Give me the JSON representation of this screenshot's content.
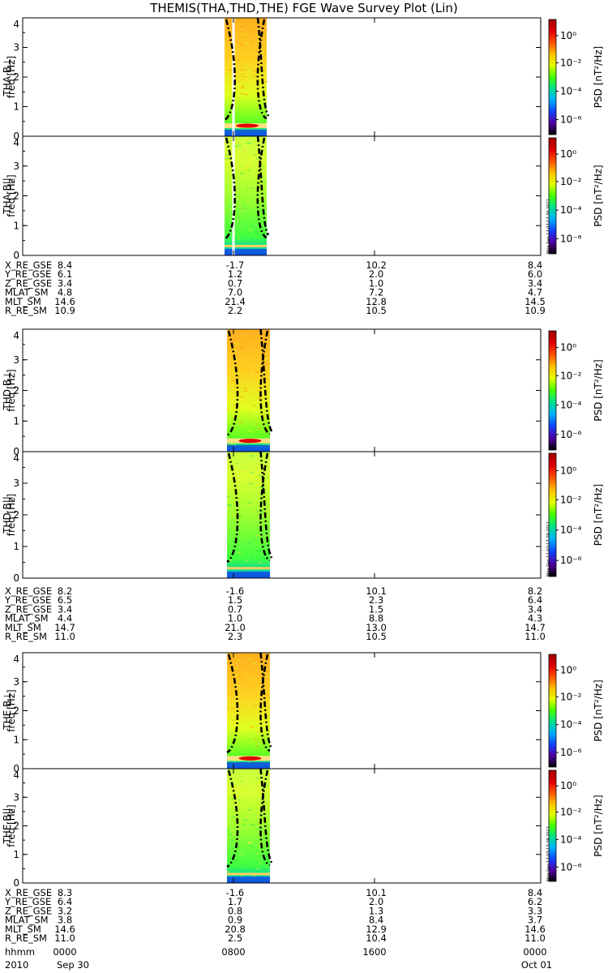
{
  "title": "THEMIS(THA,THD,THE) FGE Wave Survey Plot (Lin)",
  "colors": {
    "background": "#ffffff",
    "axes": "#000000",
    "highlight_line": "#ffffff",
    "colorbar": [
      "#000000",
      "#5000a0",
      "#1040ff",
      "#00b0ff",
      "#00e090",
      "#40ff00",
      "#e0ff00",
      "#ffc000",
      "#ff5000",
      "#e00000",
      "#a00000"
    ]
  },
  "chart_data": {
    "type": "heatmap",
    "x_axis": {
      "label_row": "hhmm",
      "ticks": [
        "0000",
        "0800",
        "1600",
        "0000"
      ],
      "date_row": [
        "2010",
        "Sep 30",
        "",
        "Oct 01"
      ]
    },
    "y_range": [
      0,
      4
    ],
    "y_ticks": [
      "0",
      "1",
      "2",
      "3",
      "4"
    ],
    "y_unit_label": "freq [Hz]",
    "colorbar": {
      "label": "PSD [nT²/Hz]",
      "ticks": [
        "10⁰",
        "10⁻²",
        "10⁻⁴",
        "10⁻⁶"
      ],
      "scale": "log"
    },
    "panels": [
      {
        "name": "THA B⊥",
        "stamp": ""
      },
      {
        "name": "THA B||",
        "stamp": "Mon Sep 17 07:17:30 2012"
      },
      {
        "name": "THD B⊥",
        "stamp": ""
      },
      {
        "name": "THD B||",
        "stamp": "Mon Sep 17 07:17:29 2012"
      },
      {
        "name": "THE B⊥",
        "stamp": ""
      },
      {
        "name": "THE B||",
        "stamp": "Mon Sep 17 07:17:29 2012"
      }
    ],
    "ephemeris": [
      {
        "probe": "THA",
        "rows": [
          {
            "label": "X_RE_GSE",
            "values": [
              "8.4",
              "-1.7",
              "10.2",
              "8.4"
            ]
          },
          {
            "label": "Y_RE_GSE",
            "values": [
              "6.1",
              "1.2",
              "2.0",
              "6.0"
            ]
          },
          {
            "label": "Z_RE_GSE",
            "values": [
              "3.4",
              "0.7",
              "1.0",
              "3.4"
            ]
          },
          {
            "label": "MLAT_SM",
            "values": [
              "4.8",
              "7.0",
              "7.2",
              "4.7"
            ]
          },
          {
            "label": "MLT_SM",
            "values": [
              "14.6",
              "21.4",
              "12.8",
              "14.5"
            ]
          },
          {
            "label": "R_RE_SM",
            "values": [
              "10.9",
              "2.2",
              "10.5",
              "10.9"
            ]
          }
        ]
      },
      {
        "probe": "THD",
        "rows": [
          {
            "label": "X_RE_GSE",
            "values": [
              "8.2",
              "-1.6",
              "10.1",
              "8.2"
            ]
          },
          {
            "label": "Y_RE_GSE",
            "values": [
              "6.5",
              "1.5",
              "2.3",
              "6.4"
            ]
          },
          {
            "label": "Z_RE_GSE",
            "values": [
              "3.4",
              "0.7",
              "1.5",
              "3.4"
            ]
          },
          {
            "label": "MLAT_SM",
            "values": [
              "4.4",
              "1.0",
              "8.8",
              "4.3"
            ]
          },
          {
            "label": "MLT_SM",
            "values": [
              "14.7",
              "21.0",
              "13.0",
              "14.7"
            ]
          },
          {
            "label": "R_RE_SM",
            "values": [
              "11.0",
              "2.3",
              "10.5",
              "11.0"
            ]
          }
        ]
      },
      {
        "probe": "THE",
        "rows": [
          {
            "label": "X_RE_GSE",
            "values": [
              "8.3",
              "-1.6",
              "10.1",
              "8.4"
            ]
          },
          {
            "label": "Y_RE_GSE",
            "values": [
              "6.4",
              "1.7",
              "2.0",
              "6.2"
            ]
          },
          {
            "label": "Z_RE_GSE",
            "values": [
              "3.2",
              "0.8",
              "1.3",
              "3.3"
            ]
          },
          {
            "label": "MLAT_SM",
            "values": [
              "3.8",
              "0.9",
              "8.4",
              "3.7"
            ]
          },
          {
            "label": "MLT_SM",
            "values": [
              "14.6",
              "20.8",
              "12.9",
              "14.6"
            ]
          },
          {
            "label": "R_RE_SM",
            "values": [
              "11.0",
              "2.5",
              "10.4",
              "11.0"
            ]
          }
        ]
      }
    ]
  }
}
